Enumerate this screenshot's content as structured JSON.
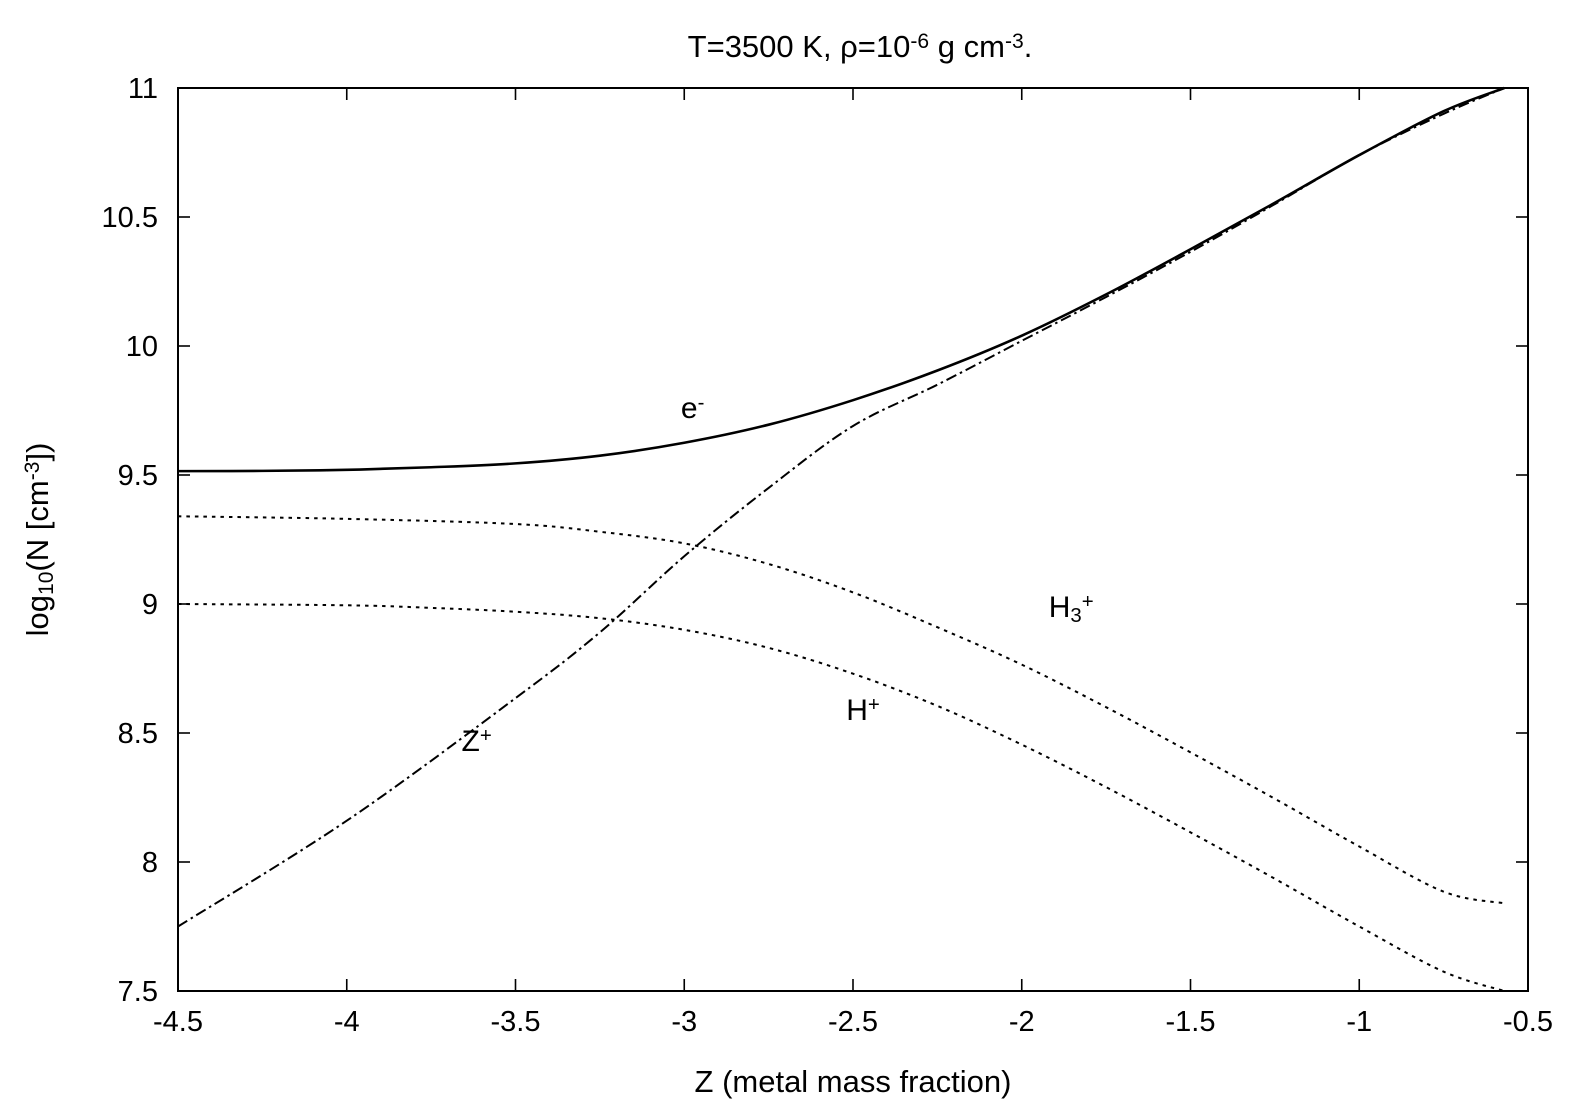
{
  "chart_data": {
    "type": "line",
    "title": {
      "parts": [
        {
          "t": "T=3500 K, ρ=10"
        },
        {
          "t": "-6",
          "s": "sup"
        },
        {
          "t": " g cm"
        },
        {
          "t": "-3",
          "s": "sup"
        },
        {
          "t": "."
        }
      ]
    },
    "xlabel": "Z (metal mass fraction)",
    "ylabel": {
      "parts": [
        {
          "t": "log"
        },
        {
          "t": "10",
          "s": "sub"
        },
        {
          "t": "(N [cm"
        },
        {
          "t": "-3",
          "s": "sup"
        },
        {
          "t": "])"
        }
      ]
    },
    "xlim": [
      -4.5,
      -0.5
    ],
    "ylim": [
      7.5,
      11
    ],
    "xticks": [
      {
        "v": -4.5,
        "label": "-4.5"
      },
      {
        "v": -4,
        "label": "-4"
      },
      {
        "v": -3.5,
        "label": "-3.5"
      },
      {
        "v": -3,
        "label": "-3"
      },
      {
        "v": -2.5,
        "label": "-2.5"
      },
      {
        "v": -2,
        "label": "-2"
      },
      {
        "v": -1.5,
        "label": "-1.5"
      },
      {
        "v": -1,
        "label": "-1"
      },
      {
        "v": -0.5,
        "label": "-0.5"
      }
    ],
    "yticks": [
      {
        "v": 7.5,
        "label": "7.5"
      },
      {
        "v": 8,
        "label": "8"
      },
      {
        "v": 8.5,
        "label": "8.5"
      },
      {
        "v": 9,
        "label": "9"
      },
      {
        "v": 9.5,
        "label": "9.5"
      },
      {
        "v": 10,
        "label": "10"
      },
      {
        "v": 10.5,
        "label": "10.5"
      },
      {
        "v": 11,
        "label": "11"
      }
    ],
    "grid": false,
    "series": [
      {
        "key": "e",
        "style": "solid",
        "label": {
          "parts": [
            {
              "t": "e"
            },
            {
              "t": "-",
              "s": "sup"
            }
          ],
          "at": [
            -3.01,
            9.72
          ]
        },
        "x": [
          -4.5,
          -4.25,
          -4.0,
          -3.75,
          -3.5,
          -3.25,
          -3.0,
          -2.75,
          -2.5,
          -2.25,
          -2.0,
          -1.75,
          -1.5,
          -1.25,
          -1.0,
          -0.75,
          -0.57
        ],
        "y": [
          9.515,
          9.516,
          9.52,
          9.53,
          9.545,
          9.575,
          9.625,
          9.695,
          9.79,
          9.905,
          10.04,
          10.2,
          10.375,
          10.555,
          10.74,
          10.91,
          11.0
        ]
      },
      {
        "key": "H3",
        "style": "dotted",
        "label": {
          "parts": [
            {
              "t": "H"
            },
            {
              "t": "3",
              "s": "sub"
            },
            {
              "t": "+",
              "s": "sup"
            }
          ],
          "at": [
            -1.92,
            8.95
          ]
        },
        "x": [
          -4.5,
          -4.0,
          -3.5,
          -3.25,
          -3.0,
          -2.75,
          -2.5,
          -2.25,
          -2.0,
          -1.75,
          -1.5,
          -1.25,
          -1.0,
          -0.75,
          -0.57
        ],
        "y": [
          9.34,
          9.33,
          9.31,
          9.28,
          9.235,
          9.155,
          9.045,
          8.91,
          8.765,
          8.6,
          8.425,
          8.245,
          8.06,
          7.885,
          7.84
        ]
      },
      {
        "key": "H",
        "style": "dotted",
        "label": {
          "parts": [
            {
              "t": "H"
            },
            {
              "t": "+",
              "s": "sup"
            }
          ],
          "at": [
            -2.52,
            8.55
          ]
        },
        "x": [
          -4.5,
          -4.0,
          -3.75,
          -3.5,
          -3.25,
          -3.0,
          -2.75,
          -2.5,
          -2.25,
          -2.0,
          -1.75,
          -1.5,
          -1.25,
          -1.0,
          -0.75,
          -0.57
        ],
        "y": [
          9.0,
          8.995,
          8.985,
          8.97,
          8.945,
          8.9,
          8.83,
          8.73,
          8.605,
          8.455,
          8.29,
          8.115,
          7.935,
          7.75,
          7.575,
          7.5
        ]
      },
      {
        "key": "Z",
        "style": "dashdot",
        "label": {
          "parts": [
            {
              "t": "Z"
            },
            {
              "t": "+",
              "s": "sup"
            }
          ],
          "at": [
            -3.66,
            8.43
          ]
        },
        "x": [
          -4.5,
          -4.0,
          -3.5,
          -3.25,
          -3.0,
          -2.75,
          -2.5,
          -2.25,
          -2.0,
          -1.75,
          -1.5,
          -1.25,
          -1.0,
          -0.75,
          -0.57
        ],
        "y": [
          7.75,
          8.16,
          8.635,
          8.89,
          9.185,
          9.45,
          9.69,
          9.85,
          10.02,
          10.19,
          10.365,
          10.55,
          10.74,
          10.9,
          11.0
        ]
      }
    ]
  }
}
